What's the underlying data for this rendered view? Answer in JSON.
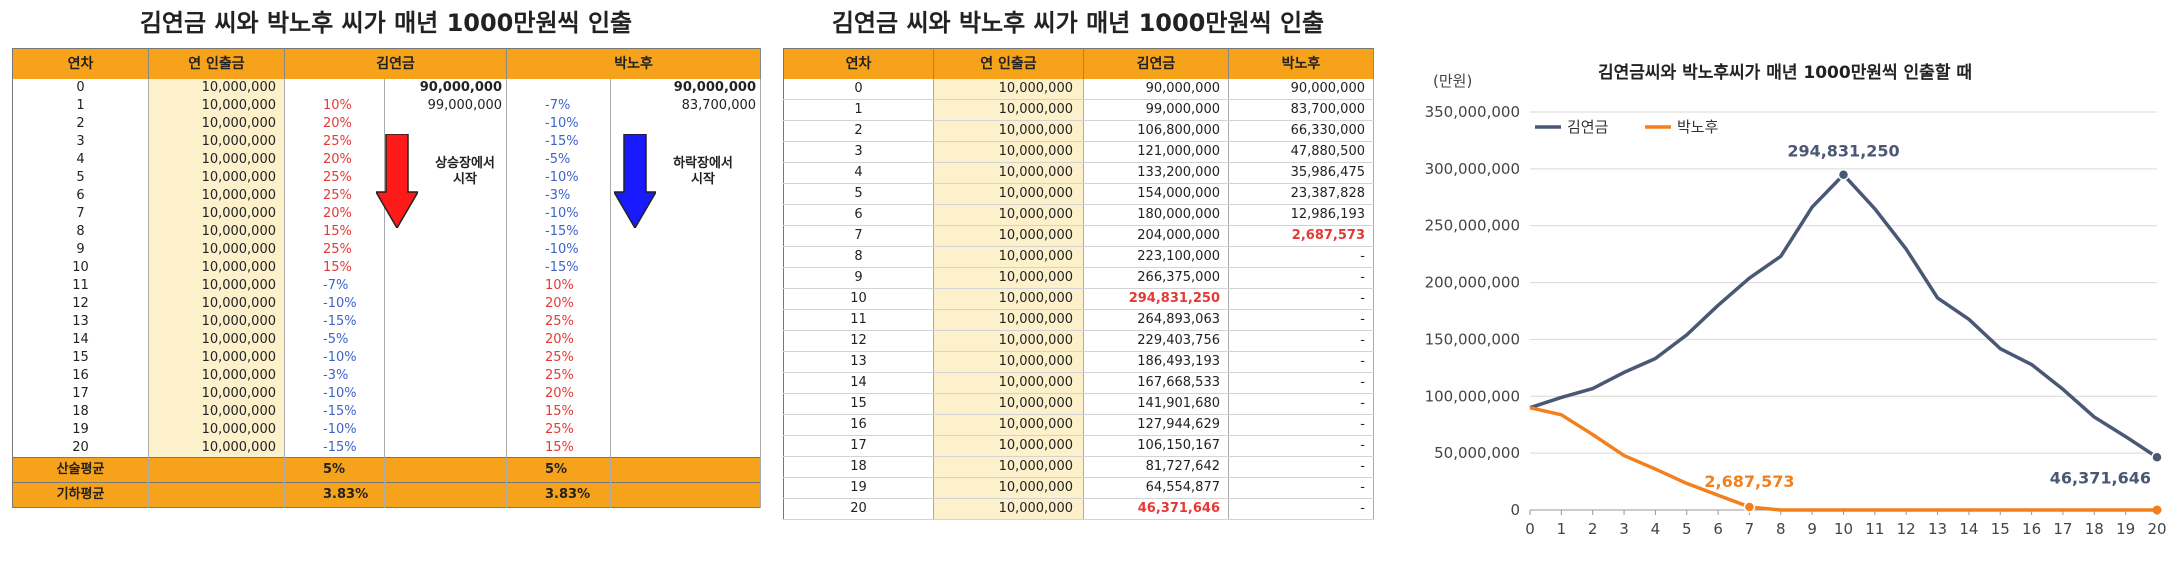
{
  "table1": {
    "title": "김연금 씨와 박노후 씨가 매년 1000만원씩 인출",
    "headers": [
      "연차",
      "연 인출금",
      "김연금",
      "박노후"
    ],
    "rows": [
      {
        "year": "0",
        "wd": "10,000,000",
        "kr": "",
        "kb": "90,000,000",
        "pr": "",
        "pb": "90,000,000"
      },
      {
        "year": "1",
        "wd": "10,000,000",
        "kr": "10%",
        "kb": "99,000,000",
        "pr": "-7%",
        "pb": "83,700,000"
      },
      {
        "year": "2",
        "wd": "10,000,000",
        "kr": "20%",
        "kb": "",
        "pr": "-10%",
        "pb": ""
      },
      {
        "year": "3",
        "wd": "10,000,000",
        "kr": "25%",
        "kb": "",
        "pr": "-15%",
        "pb": ""
      },
      {
        "year": "4",
        "wd": "10,000,000",
        "kr": "20%",
        "kb": "",
        "pr": "-5%",
        "pb": ""
      },
      {
        "year": "5",
        "wd": "10,000,000",
        "kr": "25%",
        "kb": "",
        "pr": "-10%",
        "pb": ""
      },
      {
        "year": "6",
        "wd": "10,000,000",
        "kr": "25%",
        "kb": "",
        "pr": "-3%",
        "pb": ""
      },
      {
        "year": "7",
        "wd": "10,000,000",
        "kr": "20%",
        "kb": "",
        "pr": "-10%",
        "pb": ""
      },
      {
        "year": "8",
        "wd": "10,000,000",
        "kr": "15%",
        "kb": "",
        "pr": "-15%",
        "pb": ""
      },
      {
        "year": "9",
        "wd": "10,000,000",
        "kr": "25%",
        "kb": "",
        "pr": "-10%",
        "pb": ""
      },
      {
        "year": "10",
        "wd": "10,000,000",
        "kr": "15%",
        "kb": "",
        "pr": "-15%",
        "pb": ""
      },
      {
        "year": "11",
        "wd": "10,000,000",
        "kr": "-7%",
        "kb": "",
        "pr": "10%",
        "pb": ""
      },
      {
        "year": "12",
        "wd": "10,000,000",
        "kr": "-10%",
        "kb": "",
        "pr": "20%",
        "pb": ""
      },
      {
        "year": "13",
        "wd": "10,000,000",
        "kr": "-15%",
        "kb": "",
        "pr": "25%",
        "pb": ""
      },
      {
        "year": "14",
        "wd": "10,000,000",
        "kr": "-5%",
        "kb": "",
        "pr": "20%",
        "pb": ""
      },
      {
        "year": "15",
        "wd": "10,000,000",
        "kr": "-10%",
        "kb": "",
        "pr": "25%",
        "pb": ""
      },
      {
        "year": "16",
        "wd": "10,000,000",
        "kr": "-3%",
        "kb": "",
        "pr": "25%",
        "pb": ""
      },
      {
        "year": "17",
        "wd": "10,000,000",
        "kr": "-10%",
        "kb": "",
        "pr": "20%",
        "pb": ""
      },
      {
        "year": "18",
        "wd": "10,000,000",
        "kr": "-15%",
        "kb": "",
        "pr": "15%",
        "pb": ""
      },
      {
        "year": "19",
        "wd": "10,000,000",
        "kr": "-10%",
        "kb": "",
        "pr": "25%",
        "pb": ""
      },
      {
        "year": "20",
        "wd": "10,000,000",
        "kr": "-15%",
        "kb": "",
        "pr": "15%",
        "pb": ""
      }
    ],
    "footer": [
      {
        "label": "산술평균",
        "kr": "5%",
        "pr": "5%"
      },
      {
        "label": "기하평균",
        "kr": "3.83%",
        "pr": "3.83%"
      }
    ],
    "arrow_up_label": "상승장에서\n시작",
    "arrow_down_label": "하락장에서\n시작"
  },
  "table2": {
    "title": "김연금 씨와 박노후 씨가 매년 1000만원씩 인출",
    "headers": [
      "연차",
      "연 인출금",
      "김연금",
      "박노후"
    ],
    "rows": [
      {
        "year": "0",
        "wd": "10,000,000",
        "k": "90,000,000",
        "p": "90,000,000"
      },
      {
        "year": "1",
        "wd": "10,000,000",
        "k": "99,000,000",
        "p": "83,700,000"
      },
      {
        "year": "2",
        "wd": "10,000,000",
        "k": "106,800,000",
        "p": "66,330,000"
      },
      {
        "year": "3",
        "wd": "10,000,000",
        "k": "121,000,000",
        "p": "47,880,500"
      },
      {
        "year": "4",
        "wd": "10,000,000",
        "k": "133,200,000",
        "p": "35,986,475"
      },
      {
        "year": "5",
        "wd": "10,000,000",
        "k": "154,000,000",
        "p": "23,387,828"
      },
      {
        "year": "6",
        "wd": "10,000,000",
        "k": "180,000,000",
        "p": "12,986,193"
      },
      {
        "year": "7",
        "wd": "10,000,000",
        "k": "204,000,000",
        "p": "2,687,573"
      },
      {
        "year": "8",
        "wd": "10,000,000",
        "k": "223,100,000",
        "p": "-"
      },
      {
        "year": "9",
        "wd": "10,000,000",
        "k": "266,375,000",
        "p": "-"
      },
      {
        "year": "10",
        "wd": "10,000,000",
        "k": "294,831,250",
        "p": "-"
      },
      {
        "year": "11",
        "wd": "10,000,000",
        "k": "264,893,063",
        "p": "-"
      },
      {
        "year": "12",
        "wd": "10,000,000",
        "k": "229,403,756",
        "p": "-"
      },
      {
        "year": "13",
        "wd": "10,000,000",
        "k": "186,493,193",
        "p": "-"
      },
      {
        "year": "14",
        "wd": "10,000,000",
        "k": "167,668,533",
        "p": "-"
      },
      {
        "year": "15",
        "wd": "10,000,000",
        "k": "141,901,680",
        "p": "-"
      },
      {
        "year": "16",
        "wd": "10,000,000",
        "k": "127,944,629",
        "p": "-"
      },
      {
        "year": "17",
        "wd": "10,000,000",
        "k": "106,150,167",
        "p": "-"
      },
      {
        "year": "18",
        "wd": "10,000,000",
        "k": "81,727,642",
        "p": "-"
      },
      {
        "year": "19",
        "wd": "10,000,000",
        "k": "64,554,877",
        "p": "-"
      },
      {
        "year": "20",
        "wd": "10,000,000",
        "k": "46,371,646",
        "p": "-"
      }
    ],
    "highlight_k": [
      "10",
      "20"
    ],
    "highlight_p": [
      "7"
    ]
  },
  "colors": {
    "header_orange": "#f7a21b",
    "withdraw_bg": "#fdf1cc",
    "positive_red": "#e53935",
    "negative_blue": "#3f63c9",
    "series_kim": "#4a5875",
    "series_park": "#f37f1d"
  },
  "chart_data": {
    "type": "line",
    "title": "김연금씨와 박노후씨가 매년 1000만원씩 인출할 때",
    "unit_label": "(만원)",
    "x": [
      0,
      1,
      2,
      3,
      4,
      5,
      6,
      7,
      8,
      9,
      10,
      11,
      12,
      13,
      14,
      15,
      16,
      17,
      18,
      19,
      20
    ],
    "ylim": [
      0,
      350000000
    ],
    "yticks": [
      "0",
      "50,000,000",
      "100,000,000",
      "150,000,000",
      "200,000,000",
      "250,000,000",
      "300,000,000",
      "350,000,000"
    ],
    "legend_position": "top-left",
    "grid": "horizontal",
    "series": [
      {
        "name": "김연금",
        "values": [
          90000000,
          99000000,
          106800000,
          121000000,
          133200000,
          154000000,
          180000000,
          204000000,
          223100000,
          266375000,
          294831250,
          264893063,
          229403756,
          186493193,
          167668533,
          141901680,
          127944629,
          106150167,
          81727642,
          64554877,
          46371646
        ]
      },
      {
        "name": "박노후",
        "values": [
          90000000,
          83700000,
          66330000,
          47880500,
          35986475,
          23387828,
          12986193,
          2687573,
          0,
          0,
          0,
          0,
          0,
          0,
          0,
          0,
          0,
          0,
          0,
          0,
          0
        ]
      }
    ],
    "annotations": [
      {
        "series": "김연금",
        "x": 10,
        "text": "294,831,250"
      },
      {
        "series": "박노후",
        "x": 7,
        "text": "2,687,573"
      },
      {
        "series": "김연금",
        "x": 20,
        "text": "46,371,646"
      }
    ]
  }
}
